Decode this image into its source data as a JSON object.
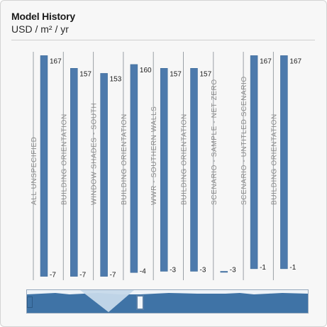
{
  "panel": {
    "title": "Model History",
    "subtitle": "USD / m² / yr"
  },
  "colors": {
    "bar": "#4d7aac",
    "bar_dark": "#3a6897",
    "separator": "#9aa0a6",
    "category_text": "#8a8a8a",
    "value_text": "#1a1a1a",
    "navigator_fill": "#3f73a6",
    "navigator_window": "#c6d9ea"
  },
  "chart_data": {
    "type": "bar",
    "orientation": "floating-range",
    "categories": [
      "ALL UNSPECIFIED",
      "BUILDING ORIENTATION",
      "WINDOW SHADES - SOUTH",
      "BUILDING ORIENTATION",
      "WWR - SOUTHERN WALLS",
      "BUILDING ORIENTATION",
      "SCENARIO - SAMPLE - NET ZERO",
      "SCENARIO - UNTITLED SCENARIO",
      "BUILDING ORIENTATION"
    ],
    "high": [
      167,
      157,
      153,
      160,
      157,
      157,
      -3,
      167,
      167
    ],
    "low": [
      -7,
      -7,
      -7,
      -4,
      -3,
      -3,
      -3,
      -1,
      -1
    ],
    "high_labels": [
      "167",
      "157",
      "153",
      "160",
      "157",
      "157",
      "",
      "167",
      "167"
    ],
    "low_labels": [
      "-7",
      "-7",
      "-7",
      "-4",
      "-3",
      "-3",
      "-3",
      "-1",
      "-1"
    ],
    "ylim": [
      -10,
      170
    ]
  },
  "navigator": {
    "selected_fraction": [
      0.0,
      0.38
    ]
  }
}
